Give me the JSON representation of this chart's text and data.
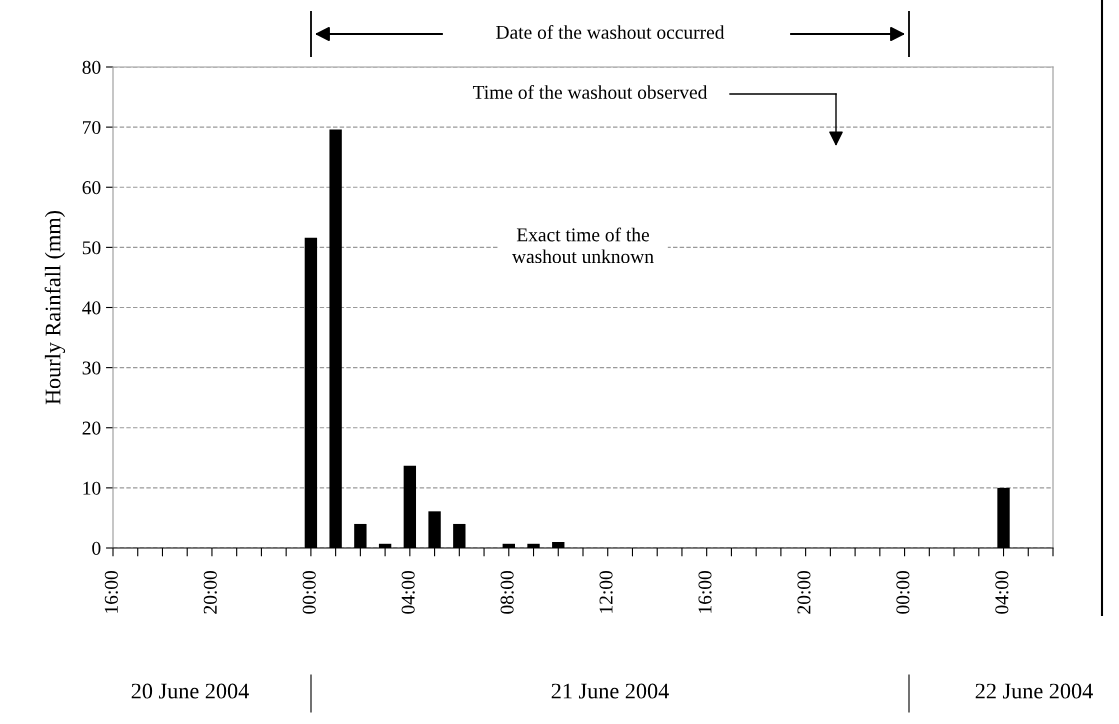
{
  "chart_data": {
    "type": "bar",
    "ylabel": "Hourly Rainfall (mm)",
    "x": [
      "2004-06-21T00:00",
      "2004-06-21T01:00",
      "2004-06-21T02:00",
      "2004-06-21T03:00",
      "2004-06-21T04:00",
      "2004-06-21T05:00",
      "2004-06-21T06:00",
      "2004-06-21T08:00",
      "2004-06-21T09:00",
      "2004-06-21T10:00",
      "2004-06-22T04:00"
    ],
    "values": [
      51.6,
      69.6,
      4,
      0.7,
      13.7,
      6.1,
      4,
      0.7,
      0.7,
      1,
      10
    ],
    "color": "#000000",
    "xlim": [
      "2004-06-20T16:00",
      "2004-06-22T06:00"
    ],
    "xticks": [
      {
        "value": "2004-06-20T16:00",
        "label": "16:00"
      },
      {
        "value": "2004-06-20T17:00",
        "label": null
      },
      {
        "value": "2004-06-20T18:00",
        "label": null
      },
      {
        "value": "2004-06-20T19:00",
        "label": null
      },
      {
        "value": "2004-06-20T20:00",
        "label": "20:00"
      },
      {
        "value": "2004-06-20T21:00",
        "label": null
      },
      {
        "value": "2004-06-20T22:00",
        "label": null
      },
      {
        "value": "2004-06-20T23:00",
        "label": null
      },
      {
        "value": "2004-06-21T00:00",
        "label": "00:00"
      },
      {
        "value": "2004-06-21T01:00",
        "label": null
      },
      {
        "value": "2004-06-21T02:00",
        "label": null
      },
      {
        "value": "2004-06-21T03:00",
        "label": null
      },
      {
        "value": "2004-06-21T04:00",
        "label": "04:00"
      },
      {
        "value": "2004-06-21T05:00",
        "label": null
      },
      {
        "value": "2004-06-21T06:00",
        "label": null
      },
      {
        "value": "2004-06-21T07:00",
        "label": null
      },
      {
        "value": "2004-06-21T08:00",
        "label": "08:00"
      },
      {
        "value": "2004-06-21T09:00",
        "label": null
      },
      {
        "value": "2004-06-21T10:00",
        "label": null
      },
      {
        "value": "2004-06-21T11:00",
        "label": null
      },
      {
        "value": "2004-06-21T12:00",
        "label": "12:00"
      },
      {
        "value": "2004-06-21T13:00",
        "label": null
      },
      {
        "value": "2004-06-21T14:00",
        "label": null
      },
      {
        "value": "2004-06-21T15:00",
        "label": null
      },
      {
        "value": "2004-06-21T16:00",
        "label": "16:00"
      },
      {
        "value": "2004-06-21T17:00",
        "label": null
      },
      {
        "value": "2004-06-21T18:00",
        "label": null
      },
      {
        "value": "2004-06-21T19:00",
        "label": null
      },
      {
        "value": "2004-06-21T20:00",
        "label": "20:00"
      },
      {
        "value": "2004-06-21T21:00",
        "label": null
      },
      {
        "value": "2004-06-21T22:00",
        "label": null
      },
      {
        "value": "2004-06-21T23:00",
        "label": null
      },
      {
        "value": "2004-06-22T00:00",
        "label": "00:00"
      },
      {
        "value": "2004-06-22T01:00",
        "label": null
      },
      {
        "value": "2004-06-22T02:00",
        "label": null
      },
      {
        "value": "2004-06-22T03:00",
        "label": null
      },
      {
        "value": "2004-06-22T04:00",
        "label": "04:00"
      },
      {
        "value": "2004-06-22T05:00",
        "label": null
      },
      {
        "value": "2004-06-22T06:00",
        "label": null
      }
    ],
    "ylim": [
      0,
      80
    ],
    "yticks": [
      0,
      10,
      20,
      30,
      40,
      50,
      60,
      70,
      80
    ],
    "grid": "y",
    "annotations": [
      "Date of the washout occurred",
      "Time of the washout observed",
      "Exact time of the washout unknown",
      "20 June 2004",
      "21 June 2004",
      "22 June 2004"
    ]
  }
}
